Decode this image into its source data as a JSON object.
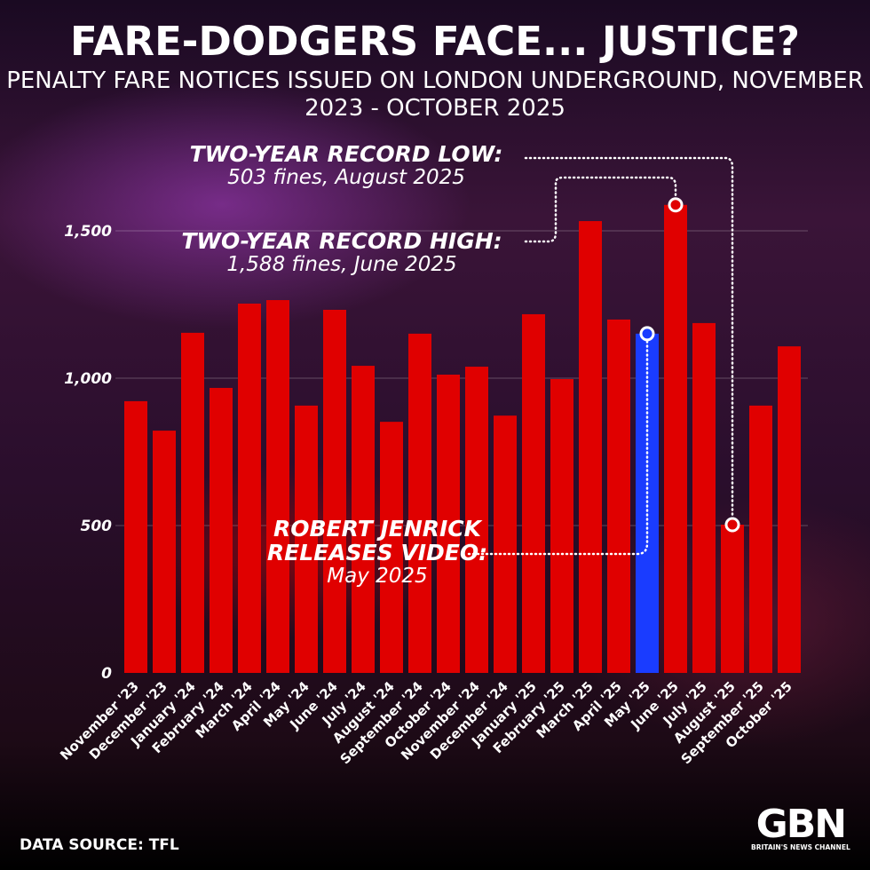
{
  "chart_data": {
    "type": "bar",
    "title": "FARE-DODGERS FACE... JUSTICE?",
    "subtitle": "PENALTY FARE NOTICES ISSUED ON LONDON UNDERGROUND, NOVEMBER 2023 - OCTOBER 2025",
    "categories": [
      "November '23",
      "December '23",
      "January '24",
      "February '24",
      "March '24",
      "April '24",
      "May '24",
      "June '24",
      "July '24",
      "August '24",
      "September '24",
      "October '24",
      "November '24",
      "December '24",
      "January '25",
      "February '25",
      "March '25",
      "April '25",
      "May '25",
      "June '25",
      "July '25",
      "August '25",
      "September '25",
      "October '25"
    ],
    "values": [
      922,
      822,
      1154,
      967,
      1253,
      1265,
      907,
      1232,
      1042,
      852,
      1151,
      1012,
      1039,
      873,
      1217,
      997,
      1533,
      1199,
      1151,
      1588,
      1187,
      503,
      907,
      1108
    ],
    "highlight_index": 18,
    "ylim": [
      0,
      1600
    ],
    "yticks": [
      0,
      500,
      1000,
      1500
    ],
    "ytick_labels": [
      "0",
      "500",
      "1,000",
      "1,500"
    ],
    "grid": true,
    "colors": {
      "bar": "#e00000",
      "highlight": "#1a3cff"
    },
    "annotations": [
      {
        "title": "TWO-YEAR RECORD LOW:",
        "text": "503 fines, August 2025",
        "index": 21
      },
      {
        "title": "TWO-YEAR RECORD HIGH:",
        "text": "1,588 fines, June 2025",
        "index": 19
      },
      {
        "title": "ROBERT JENRICK RELEASES VIDEO:",
        "title_line1": "ROBERT JENRICK",
        "title_line2": "RELEASES VIDEO:",
        "text": "May 2025",
        "index": 18
      }
    ]
  },
  "source": "DATA SOURCE: TFL",
  "logo": {
    "text": "GBN",
    "tagline": "BRITAIN'S NEWS CHANNEL"
  }
}
